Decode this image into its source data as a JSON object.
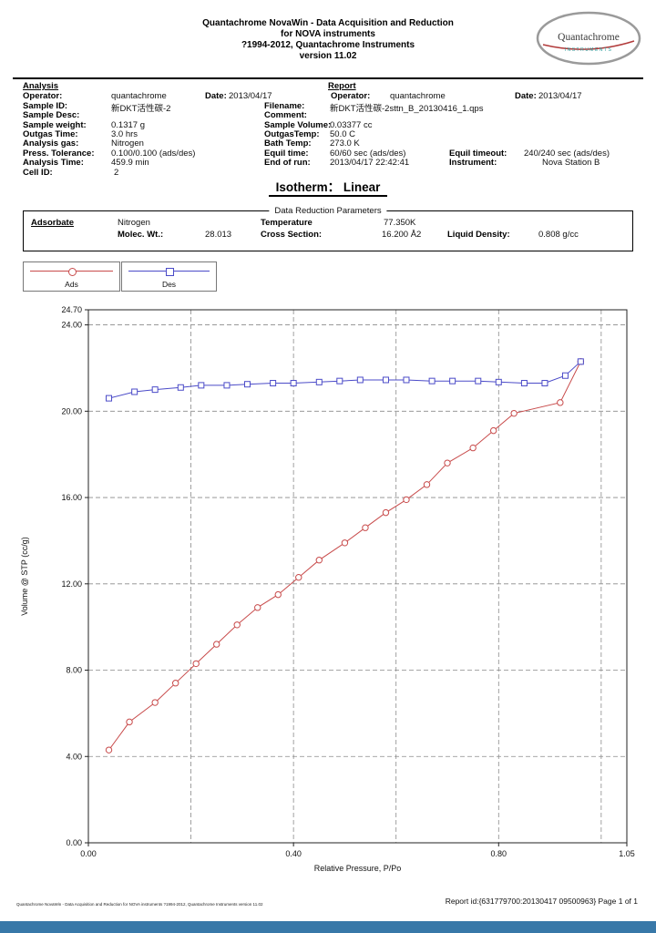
{
  "page": {
    "bottom_bar_color": "#3878a8"
  },
  "header": {
    "line1": "Quantachrome NovaWin - Data Acquisition and Reduction",
    "line2": "for NOVA instruments",
    "line3": "?1994-2012, Quantachrome Instruments",
    "line4": "version 11.02"
  },
  "logo": {
    "brand": "Quantachrome",
    "sub": "INSTRUMENTS"
  },
  "analysis": {
    "heading": "Analysis",
    "operator_label": "Operator:",
    "operator": "quantachrome",
    "date_label": "Date:",
    "date": "2013/04/17",
    "sample_id_label": "Sample ID:",
    "sample_id": "新DKT活性碳-2",
    "sample_desc_label": "Sample Desc:",
    "sample_desc": "",
    "sample_weight_label": "Sample weight:",
    "sample_weight": "0.1317 g",
    "outgas_time_label": "Outgas Time:",
    "outgas_time": "3.0 hrs",
    "analysis_gas_label": "Analysis gas:",
    "analysis_gas": "Nitrogen",
    "press_tolerance_label": "Press. Tolerance:",
    "press_tolerance": "0.100/0.100 (ads/des)",
    "analysis_time_label": "Analysis Time:",
    "analysis_time": "459.9 min",
    "cell_id_label": "Cell ID:",
    "cell_id": "2"
  },
  "report": {
    "heading": "Report",
    "operator_label": "Operator:",
    "operator": "quantachrome",
    "date_label": "Date:",
    "date": "2013/04/17",
    "filename_label": "Filename:",
    "filename": "新DKT活性碳-2sttn_B_20130416_1.qps",
    "comment_label": "Comment:",
    "comment": "",
    "sample_volume_label": "Sample Volume:",
    "sample_volume": "0.03377 cc",
    "outgas_temp_label": "OutgasTemp:",
    "outgas_temp": "50.0 C",
    "bath_temp_label": "Bath Temp:",
    "bath_temp": "273.0 K",
    "equil_time_label": "Equil time:",
    "equil_time": "60/60 sec (ads/des)",
    "equil_timeout_label": "Equil timeout:",
    "equil_timeout": "240/240 sec (ads/des)",
    "end_of_run_label": "End of run:",
    "end_of_run": "2013/04/17 22:42:41",
    "instrument_label": "Instrument:",
    "instrument": "Nova Station B"
  },
  "title": "Isotherm：  Linear",
  "data_reduction": {
    "box_title": "Data Reduction Parameters",
    "adsorbate_label": "Adsorbate",
    "adsorbate": "Nitrogen",
    "molec_wt_label": "Molec. Wt.:",
    "molec_wt": "28.013",
    "temperature_label": "Temperature",
    "temperature": "77.350K",
    "cross_section_label": "Cross Section:",
    "cross_section": "16.200 Å2",
    "liquid_density_label": "Liquid Density:",
    "liquid_density": "0.808  g/cc"
  },
  "legend": {
    "ads": "Ads",
    "des": "Des",
    "ads_color": "#c84b4b",
    "des_color": "#4b4bc8"
  },
  "chart_data": {
    "type": "line",
    "title": "Isotherm： Linear",
    "xlabel": "Relative Pressure, P/Po",
    "ylabel": "Volume @ STP (cc/g)",
    "xlim": [
      0,
      1.05
    ],
    "ylim": [
      0,
      24.7
    ],
    "grid": "dashed",
    "legend_position": "top-left-outside",
    "x_ticks": {
      "values": [
        0,
        0.4,
        0.8,
        1.05
      ],
      "labels": [
        "0.00",
        "0.40",
        "0.80",
        "1.05"
      ]
    },
    "y_ticks": {
      "values": [
        0,
        4,
        8,
        12,
        16,
        20,
        24,
        24.7
      ],
      "labels": [
        "0.00",
        "4.00",
        "8.00",
        "12.00",
        "16.00",
        "20.00",
        "24.00",
        "24.70"
      ]
    },
    "x_gridlines": [
      0.2,
      0.4,
      0.6,
      0.8,
      1.0
    ],
    "y_gridlines": [
      4,
      8,
      12,
      16,
      20,
      24
    ],
    "series": [
      {
        "name": "Ads",
        "marker": "circle",
        "color": "#c84b4b",
        "points": [
          [
            0.04,
            4.3
          ],
          [
            0.08,
            5.6
          ],
          [
            0.13,
            6.5
          ],
          [
            0.17,
            7.4
          ],
          [
            0.21,
            8.3
          ],
          [
            0.25,
            9.2
          ],
          [
            0.29,
            10.1
          ],
          [
            0.33,
            10.9
          ],
          [
            0.37,
            11.5
          ],
          [
            0.41,
            12.3
          ],
          [
            0.45,
            13.1
          ],
          [
            0.5,
            13.9
          ],
          [
            0.54,
            14.6
          ],
          [
            0.58,
            15.3
          ],
          [
            0.62,
            15.9
          ],
          [
            0.66,
            16.6
          ],
          [
            0.7,
            17.6
          ],
          [
            0.75,
            18.3
          ],
          [
            0.79,
            19.1
          ],
          [
            0.83,
            19.9
          ],
          [
            0.92,
            20.4
          ],
          [
            0.96,
            22.3
          ]
        ]
      },
      {
        "name": "Des",
        "marker": "square",
        "color": "#4b4bc8",
        "points": [
          [
            0.04,
            20.6
          ],
          [
            0.09,
            20.9
          ],
          [
            0.13,
            21.0
          ],
          [
            0.18,
            21.1
          ],
          [
            0.22,
            21.2
          ],
          [
            0.27,
            21.2
          ],
          [
            0.31,
            21.25
          ],
          [
            0.36,
            21.3
          ],
          [
            0.4,
            21.3
          ],
          [
            0.45,
            21.35
          ],
          [
            0.49,
            21.4
          ],
          [
            0.53,
            21.45
          ],
          [
            0.58,
            21.45
          ],
          [
            0.62,
            21.45
          ],
          [
            0.67,
            21.4
          ],
          [
            0.71,
            21.4
          ],
          [
            0.76,
            21.4
          ],
          [
            0.8,
            21.35
          ],
          [
            0.85,
            21.3
          ],
          [
            0.89,
            21.3
          ],
          [
            0.93,
            21.65
          ],
          [
            0.96,
            22.3
          ]
        ]
      }
    ]
  },
  "footer": {
    "left": "Quantachrome NovaWin - Data Acquisition and Reduction for NOVA instruments ?1994-2012, Quantachrome Instruments version 11.02",
    "right": "Report id:{631779700:20130417 09500963} Page 1 of 1"
  }
}
